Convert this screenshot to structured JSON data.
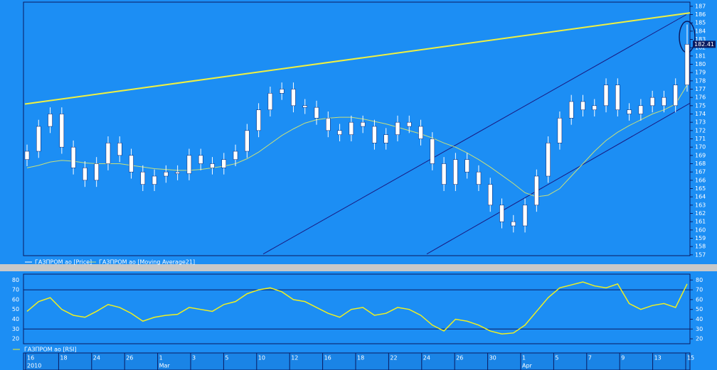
{
  "chart_data": [
    {
      "type": "candlestick",
      "ylim": [
        156.9,
        187.5
      ],
      "yticks": [
        157,
        158,
        159,
        160,
        161,
        162,
        163,
        164,
        165,
        166,
        167,
        168,
        169,
        170,
        171,
        172,
        173,
        174,
        175,
        176,
        177,
        178,
        179,
        180,
        181,
        182,
        183,
        184,
        185,
        186,
        187
      ],
      "series": [
        {
          "name": "ГАЗПРОМ ао [Price]",
          "color": "#ffffff",
          "open": [
            168.5,
            169.5,
            172.5,
            174,
            170,
            167.5,
            166,
            168,
            170.5,
            169,
            167,
            165.5,
            166.5,
            167,
            166.8,
            169,
            168,
            167.5,
            168.5,
            169.5,
            172,
            174.5,
            176.5,
            177,
            175,
            174.8,
            173.5,
            172,
            171.5,
            173,
            172.5,
            170.5,
            171.5,
            173,
            172.5,
            171,
            168,
            165.5,
            168.5,
            167,
            165.5,
            163,
            161,
            160.5,
            163,
            166.5,
            170.5,
            173.5,
            175.5,
            174.5,
            175,
            177.5,
            174.5,
            174,
            175,
            176,
            175,
            177.5
          ],
          "high": [
            170.3,
            173.3,
            174.8,
            174.8,
            170.8,
            168.3,
            168.8,
            171.3,
            171.3,
            169.8,
            167.8,
            167.3,
            167.8,
            167.8,
            169.8,
            169.8,
            168.8,
            169.3,
            170.3,
            172.8,
            175.3,
            177.3,
            177.8,
            177.8,
            175.8,
            175.6,
            174.3,
            172.8,
            173.8,
            173.8,
            173.3,
            172.3,
            173.8,
            173.8,
            173.3,
            171.8,
            168.8,
            169.3,
            169.3,
            167.8,
            166.3,
            163.8,
            161.8,
            163.8,
            167.3,
            171.3,
            174.3,
            176.3,
            176.3,
            175.8,
            178.3,
            178.3,
            175.3,
            175.8,
            176.8,
            176.8,
            178.3,
            184.8
          ],
          "low": [
            167.7,
            168.7,
            171.7,
            169.2,
            166.7,
            165.2,
            165.2,
            167.2,
            168.2,
            166.2,
            164.7,
            164.7,
            165.7,
            166,
            166,
            167.2,
            166.7,
            166.7,
            167.7,
            168.7,
            171.2,
            173.7,
            175.7,
            174.2,
            174,
            172.7,
            171.2,
            170.7,
            170.7,
            171.7,
            169.7,
            169.7,
            170.7,
            171.7,
            170.2,
            167.2,
            164.7,
            164.7,
            166.2,
            164.7,
            162.2,
            160.2,
            159.7,
            159.7,
            162.2,
            165.7,
            169.7,
            172.7,
            173.7,
            173.7,
            174.2,
            173.7,
            173.2,
            173.2,
            174.2,
            174.2,
            174.2,
            176.7
          ],
          "close": [
            169.5,
            172.5,
            174,
            170,
            167.5,
            166,
            168,
            170.5,
            169,
            167,
            165.5,
            166.5,
            167,
            166.8,
            169,
            168,
            167.5,
            168.5,
            169.5,
            172,
            174.5,
            176.5,
            177,
            175,
            174.8,
            173.5,
            172,
            171.5,
            173,
            172.5,
            170.5,
            171.5,
            173,
            172.5,
            171,
            168,
            165.5,
            168.5,
            167,
            165.5,
            163,
            161,
            160.5,
            163,
            166.5,
            170.5,
            173.5,
            175.5,
            174.5,
            175,
            177.5,
            174.5,
            174,
            175,
            176,
            175,
            177.5,
            182.41
          ],
          "last_label": "182.41"
        },
        {
          "name": "ГАЗПРОМ ао [Moving Average21]",
          "color": "#c8e07a",
          "values": [
            167.5,
            167.8,
            168.2,
            168.4,
            168.3,
            168.1,
            168,
            168,
            168,
            167.8,
            167.6,
            167.4,
            167.3,
            167.2,
            167.2,
            167.3,
            167.5,
            167.7,
            168,
            168.6,
            169.4,
            170.4,
            171.4,
            172.2,
            172.9,
            173.3,
            173.5,
            173.6,
            173.6,
            173.4,
            173.1,
            172.8,
            172.4,
            172,
            171.6,
            171.1,
            170.5,
            170,
            169.3,
            168.5,
            167.6,
            166.6,
            165.6,
            164.5,
            164,
            164.2,
            165,
            166.5,
            168,
            169.5,
            170.8,
            171.8,
            172.6,
            173.3,
            174,
            174.5,
            175.2,
            177.5
          ]
        }
      ],
      "trendlines": [
        {
          "color": "#f0f040",
          "values": [
            175.2,
            186.2
          ]
        },
        {
          "color": "#1a1a80",
          "values": [
            157.1,
            186.0
          ]
        },
        {
          "color": "#1a1a80",
          "values": [
            157.1,
            175.3
          ]
        }
      ]
    },
    {
      "type": "line",
      "ylim": [
        15,
        86
      ],
      "yticks": [
        20,
        30,
        40,
        50,
        60,
        70,
        80
      ],
      "levels": [
        70,
        30
      ],
      "series": [
        {
          "name": "ГАЗПРОМ ао [RSI]",
          "color": "#f0f020",
          "values": [
            48,
            58,
            62,
            50,
            44,
            42,
            48,
            55,
            52,
            46,
            38,
            42,
            44,
            45,
            52,
            50,
            48,
            55,
            58,
            66,
            70,
            72,
            68,
            60,
            58,
            52,
            46,
            42,
            50,
            52,
            44,
            46,
            52,
            50,
            44,
            34,
            28,
            40,
            38,
            34,
            28,
            25,
            26,
            34,
            48,
            62,
            72,
            75,
            78,
            74,
            72,
            76,
            56,
            50,
            54,
            56,
            52,
            76
          ]
        }
      ],
      "days": [
        "16",
        "18",
        "24",
        "26",
        "1",
        "3",
        "5",
        "10",
        "12",
        "16",
        "18",
        "22",
        "24",
        "26",
        "30",
        "1",
        "5",
        "7",
        "9",
        "13",
        "15"
      ],
      "months": [
        "2010",
        null,
        null,
        null,
        "Mar",
        null,
        null,
        null,
        null,
        null,
        null,
        null,
        null,
        null,
        null,
        "Apr",
        null,
        null,
        null,
        null,
        null
      ]
    }
  ]
}
